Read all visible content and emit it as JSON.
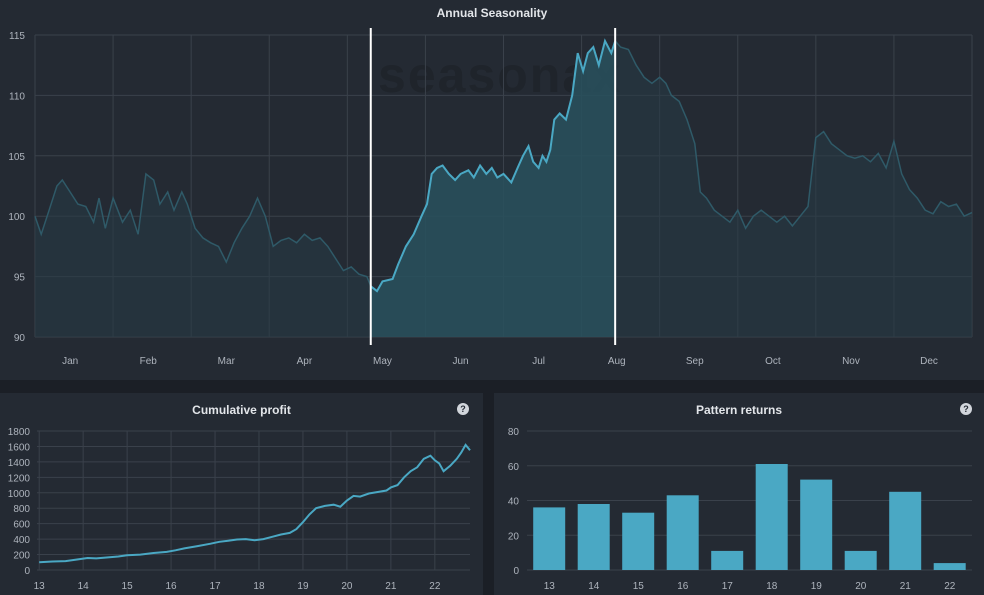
{
  "top_chart": {
    "title": "Annual Seasonality",
    "watermark": "seasonax",
    "line_color": "#4aa8c4",
    "dim_line_color": "#2f5a68",
    "highlight_color": "#ffffff",
    "chart_data": {
      "type": "line",
      "ylim": [
        90,
        115
      ],
      "yticks": [
        90,
        95,
        100,
        105,
        110,
        115
      ],
      "xlim": [
        0,
        12
      ],
      "month_labels": [
        "Jan",
        "Feb",
        "Mar",
        "Apr",
        "May",
        "Jun",
        "Jul",
        "Aug",
        "Sep",
        "Oct",
        "Nov",
        "Dec"
      ],
      "highlight_range": [
        4.3,
        7.43
      ],
      "points": [
        [
          0,
          100
        ],
        [
          0.08,
          98.5
        ],
        [
          0.18,
          100.5
        ],
        [
          0.28,
          102.5
        ],
        [
          0.35,
          103
        ],
        [
          0.45,
          102
        ],
        [
          0.55,
          101
        ],
        [
          0.65,
          100.8
        ],
        [
          0.75,
          99.5
        ],
        [
          0.82,
          101.5
        ],
        [
          0.9,
          99
        ],
        [
          1.0,
          101.5
        ],
        [
          1.12,
          99.5
        ],
        [
          1.22,
          100.5
        ],
        [
          1.32,
          98.5
        ],
        [
          1.42,
          103.5
        ],
        [
          1.52,
          103
        ],
        [
          1.6,
          101
        ],
        [
          1.7,
          102
        ],
        [
          1.78,
          100.5
        ],
        [
          1.88,
          102
        ],
        [
          1.95,
          101
        ],
        [
          2.05,
          99
        ],
        [
          2.15,
          98.2
        ],
        [
          2.25,
          97.8
        ],
        [
          2.35,
          97.5
        ],
        [
          2.45,
          96.2
        ],
        [
          2.55,
          97.8
        ],
        [
          2.65,
          99
        ],
        [
          2.75,
          100
        ],
        [
          2.85,
          101.5
        ],
        [
          2.95,
          100
        ],
        [
          3.05,
          97.5
        ],
        [
          3.15,
          98
        ],
        [
          3.25,
          98.2
        ],
        [
          3.35,
          97.8
        ],
        [
          3.45,
          98.5
        ],
        [
          3.55,
          98
        ],
        [
          3.65,
          98.2
        ],
        [
          3.75,
          97.5
        ],
        [
          3.85,
          96.5
        ],
        [
          3.95,
          95.5
        ],
        [
          4.05,
          95.8
        ],
        [
          4.15,
          95.2
        ],
        [
          4.25,
          95
        ],
        [
          4.3,
          94.2
        ],
        [
          4.38,
          93.8
        ],
        [
          4.45,
          94.6
        ],
        [
          4.58,
          94.8
        ],
        [
          4.65,
          96
        ],
        [
          4.75,
          97.5
        ],
        [
          4.85,
          98.5
        ],
        [
          4.95,
          100
        ],
        [
          5.02,
          101
        ],
        [
          5.08,
          103.5
        ],
        [
          5.15,
          104
        ],
        [
          5.22,
          104.2
        ],
        [
          5.3,
          103.5
        ],
        [
          5.38,
          103
        ],
        [
          5.45,
          103.5
        ],
        [
          5.55,
          103.8
        ],
        [
          5.62,
          103.2
        ],
        [
          5.7,
          104.2
        ],
        [
          5.78,
          103.5
        ],
        [
          5.85,
          104
        ],
        [
          5.92,
          103.2
        ],
        [
          6.0,
          103.5
        ],
        [
          6.1,
          102.8
        ],
        [
          6.18,
          104
        ],
        [
          6.25,
          105
        ],
        [
          6.32,
          105.8
        ],
        [
          6.38,
          104.5
        ],
        [
          6.45,
          104
        ],
        [
          6.5,
          105
        ],
        [
          6.55,
          104.5
        ],
        [
          6.6,
          105.5
        ],
        [
          6.65,
          108
        ],
        [
          6.72,
          108.5
        ],
        [
          6.8,
          108
        ],
        [
          6.88,
          110
        ],
        [
          6.95,
          113.5
        ],
        [
          7.02,
          112
        ],
        [
          7.08,
          113.5
        ],
        [
          7.15,
          114
        ],
        [
          7.22,
          112.5
        ],
        [
          7.3,
          114.5
        ],
        [
          7.38,
          113.5
        ],
        [
          7.43,
          114.5
        ],
        [
          7.5,
          114
        ],
        [
          7.6,
          113.8
        ],
        [
          7.7,
          112.5
        ],
        [
          7.8,
          111.5
        ],
        [
          7.9,
          111
        ],
        [
          8.0,
          111.5
        ],
        [
          8.08,
          111
        ],
        [
          8.15,
          110
        ],
        [
          8.25,
          109.5
        ],
        [
          8.35,
          108
        ],
        [
          8.45,
          106
        ],
        [
          8.52,
          102
        ],
        [
          8.6,
          101.5
        ],
        [
          8.7,
          100.5
        ],
        [
          8.8,
          100
        ],
        [
          8.9,
          99.5
        ],
        [
          9.0,
          100.5
        ],
        [
          9.1,
          99
        ],
        [
          9.2,
          100
        ],
        [
          9.3,
          100.5
        ],
        [
          9.4,
          100
        ],
        [
          9.5,
          99.5
        ],
        [
          9.6,
          100
        ],
        [
          9.7,
          99.2
        ],
        [
          9.8,
          100
        ],
        [
          9.9,
          100.8
        ],
        [
          10.0,
          106.5
        ],
        [
          10.1,
          107
        ],
        [
          10.2,
          106
        ],
        [
          10.3,
          105.5
        ],
        [
          10.4,
          105
        ],
        [
          10.5,
          104.8
        ],
        [
          10.6,
          105
        ],
        [
          10.7,
          104.5
        ],
        [
          10.8,
          105.2
        ],
        [
          10.9,
          104
        ],
        [
          11.0,
          106.2
        ],
        [
          11.1,
          103.5
        ],
        [
          11.2,
          102.2
        ],
        [
          11.3,
          101.5
        ],
        [
          11.4,
          100.5
        ],
        [
          11.5,
          100.2
        ],
        [
          11.6,
          101.2
        ],
        [
          11.7,
          100.8
        ],
        [
          11.8,
          101
        ],
        [
          11.9,
          100
        ],
        [
          12.0,
          100.3
        ]
      ]
    }
  },
  "left_chart": {
    "title": "Cumulative profit",
    "help": "?",
    "line_color": "#4aa8c4",
    "chart_data": {
      "type": "line",
      "ylim": [
        0,
        1800
      ],
      "yticks": [
        0,
        200,
        400,
        600,
        800,
        1000,
        1200,
        1400,
        1600,
        1800
      ],
      "xlim": [
        12.95,
        22.8
      ],
      "xticks": [
        13,
        14,
        15,
        16,
        17,
        18,
        19,
        20,
        21,
        22
      ],
      "points": [
        [
          13.0,
          100
        ],
        [
          13.3,
          110
        ],
        [
          13.6,
          115
        ],
        [
          13.9,
          140
        ],
        [
          14.1,
          155
        ],
        [
          14.3,
          150
        ],
        [
          14.5,
          160
        ],
        [
          14.8,
          175
        ],
        [
          15.0,
          190
        ],
        [
          15.3,
          200
        ],
        [
          15.6,
          220
        ],
        [
          15.9,
          235
        ],
        [
          16.1,
          255
        ],
        [
          16.3,
          280
        ],
        [
          16.6,
          310
        ],
        [
          16.9,
          340
        ],
        [
          17.1,
          365
        ],
        [
          17.3,
          380
        ],
        [
          17.5,
          395
        ],
        [
          17.7,
          400
        ],
        [
          17.9,
          385
        ],
        [
          18.1,
          400
        ],
        [
          18.3,
          430
        ],
        [
          18.5,
          460
        ],
        [
          18.7,
          480
        ],
        [
          18.85,
          530
        ],
        [
          19.0,
          620
        ],
        [
          19.15,
          720
        ],
        [
          19.3,
          800
        ],
        [
          19.5,
          830
        ],
        [
          19.7,
          845
        ],
        [
          19.85,
          820
        ],
        [
          20.0,
          900
        ],
        [
          20.15,
          960
        ],
        [
          20.3,
          950
        ],
        [
          20.5,
          990
        ],
        [
          20.7,
          1010
        ],
        [
          20.9,
          1030
        ],
        [
          21.0,
          1070
        ],
        [
          21.15,
          1100
        ],
        [
          21.3,
          1200
        ],
        [
          21.45,
          1280
        ],
        [
          21.6,
          1330
        ],
        [
          21.75,
          1440
        ],
        [
          21.9,
          1480
        ],
        [
          22.0,
          1420
        ],
        [
          22.1,
          1380
        ],
        [
          22.2,
          1280
        ],
        [
          22.35,
          1350
        ],
        [
          22.5,
          1440
        ],
        [
          22.6,
          1520
        ],
        [
          22.7,
          1620
        ],
        [
          22.8,
          1550
        ]
      ]
    }
  },
  "right_chart": {
    "title": "Pattern returns",
    "help": "?",
    "bar_color": "#4aa8c4",
    "chart_data": {
      "type": "bar",
      "ylim": [
        0,
        80
      ],
      "yticks": [
        0,
        20,
        40,
        60,
        80
      ],
      "categories": [
        "13",
        "14",
        "15",
        "16",
        "17",
        "18",
        "19",
        "20",
        "21",
        "22"
      ],
      "values": [
        36,
        38,
        33,
        43,
        11,
        61,
        52,
        11,
        45,
        4
      ]
    }
  }
}
